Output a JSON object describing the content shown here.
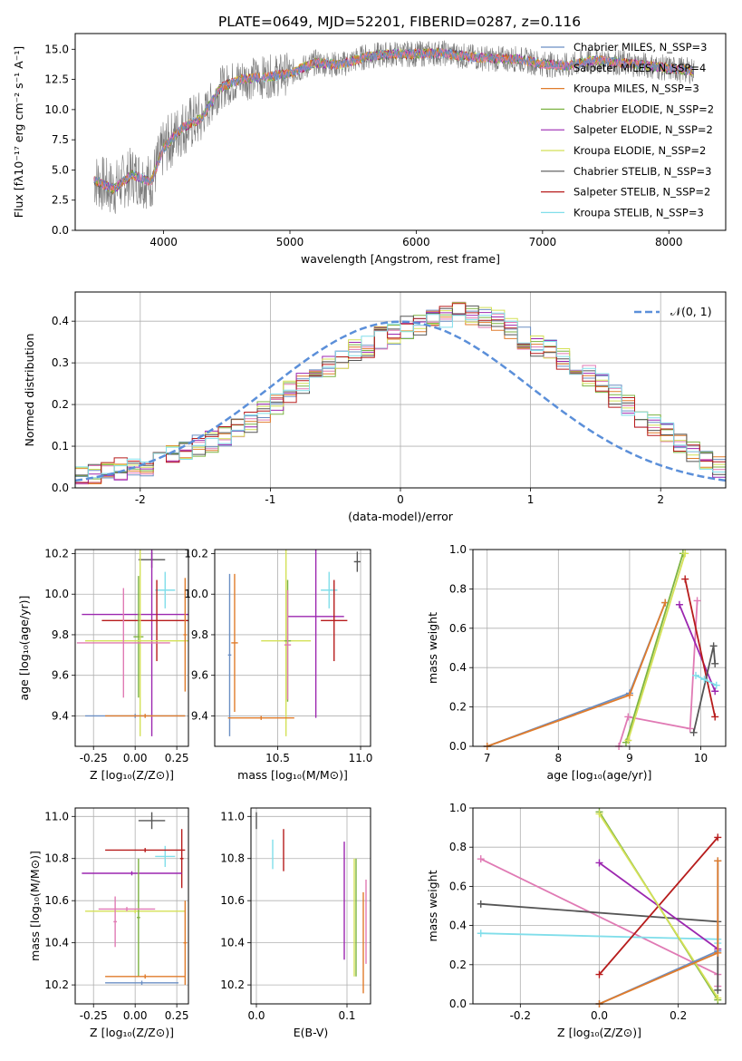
{
  "figure_title": "PLATE=0649, MJD=52201, FIBERID=0287, z=0.116",
  "chart_data": [
    {
      "type": "line",
      "id": "spectrum",
      "xlabel": "wavelength [Angstrom, rest frame]",
      "ylabel": "Flux [fλ10⁻¹⁷ erg cm⁻² s⁻¹ A⁻¹]",
      "xlim": [
        3300,
        8450
      ],
      "ylim": [
        0,
        16.3
      ],
      "xticks": [
        4000,
        5000,
        6000,
        7000,
        8000
      ],
      "yticks": [
        0.0,
        2.5,
        5.0,
        7.5,
        10.0,
        12.5,
        15.0
      ],
      "data_x": [
        3450,
        3600,
        3750,
        3900,
        4000,
        4150,
        4300,
        4450,
        4600,
        4800,
        5000,
        5200,
        5400,
        5600,
        5800,
        6000,
        6200,
        6400,
        6600,
        6800,
        7000,
        7200,
        7400,
        7600,
        7800,
        8000,
        8200
      ],
      "data_y": [
        4.2,
        3.4,
        4.6,
        4.0,
        6.8,
        8.5,
        9.3,
        11.8,
        12.5,
        12.7,
        13.0,
        13.9,
        13.7,
        14.4,
        14.6,
        14.6,
        14.7,
        14.4,
        14.2,
        14.2,
        13.8,
        13.6,
        14.1,
        13.9,
        13.7,
        13.4,
        13.2
      ],
      "legend": [
        {
          "label": "Chabrier MILES, N_SSP=3",
          "color": "#6b8fc4"
        },
        {
          "label": "Salpeter MILES, N_SSP=4",
          "color": "#e07ab4"
        },
        {
          "label": "Kroupa MILES, N_SSP=3",
          "color": "#e07c2c"
        },
        {
          "label": "Chabrier ELODIE, N_SSP=2",
          "color": "#7cb342"
        },
        {
          "label": "Salpeter ELODIE, N_SSP=2",
          "color": "#9c27b0"
        },
        {
          "label": "Kroupa ELODIE, N_SSP=2",
          "color": "#d4e157"
        },
        {
          "label": "Chabrier STELIB, N_SSP=3",
          "color": "#555555"
        },
        {
          "label": "Salpeter STELIB, N_SSP=2",
          "color": "#b71c1c"
        },
        {
          "label": "Kroupa STELIB, N_SSP=3",
          "color": "#80deea"
        }
      ]
    },
    {
      "type": "bar",
      "id": "residuals",
      "xlabel": "(data-model)/error",
      "ylabel": "Normed distribution",
      "xlim": [
        -2.5,
        2.5
      ],
      "ylim": [
        0,
        0.47
      ],
      "xticks": [
        -2,
        -1,
        0,
        1,
        2
      ],
      "yticks": [
        0.0,
        0.1,
        0.2,
        0.3,
        0.4
      ],
      "legend": "𝒩(0, 1)",
      "gaussian": {
        "mu": 0,
        "sigma": 1,
        "color": "#5b8fd9"
      },
      "bins_start": -2.5,
      "bin_width": 0.1,
      "hist_values": [
        0.03,
        0.035,
        0.04,
        0.045,
        0.05,
        0.055,
        0.07,
        0.08,
        0.09,
        0.1,
        0.11,
        0.12,
        0.14,
        0.16,
        0.18,
        0.2,
        0.23,
        0.25,
        0.27,
        0.29,
        0.31,
        0.33,
        0.34,
        0.36,
        0.37,
        0.385,
        0.39,
        0.4,
        0.41,
        0.42,
        0.415,
        0.41,
        0.4,
        0.38,
        0.36,
        0.34,
        0.33,
        0.31,
        0.29,
        0.27,
        0.25,
        0.22,
        0.2,
        0.17,
        0.15,
        0.13,
        0.11,
        0.09,
        0.07,
        0.05
      ]
    },
    {
      "type": "scatter",
      "id": "age-vs-Z",
      "xlabel": "Z [log₁₀(Z/Z⊙)]",
      "ylabel": "age  [log₁₀(age/yr)]",
      "xlim": [
        -0.36,
        0.32
      ],
      "ylim": [
        9.25,
        10.22
      ],
      "xticks": [
        -0.25,
        0.0,
        0.25
      ],
      "yticks": [
        9.4,
        9.6,
        9.8,
        10.0,
        10.2
      ],
      "errorbars": [
        {
          "x": 0.1,
          "y": 10.17,
          "xerr": 0.08,
          "yerr": 0.04,
          "color": "#555555"
        },
        {
          "x": 0.18,
          "y": 10.02,
          "xerr": 0.06,
          "yerr": 0.09,
          "color": "#80deea"
        },
        {
          "x": 0.1,
          "y": 9.9,
          "xerr": 0.42,
          "yerr": 0.6,
          "color": "#9c27b0"
        },
        {
          "x": 0.13,
          "y": 9.87,
          "xerr": 0.33,
          "yerr": 0.2,
          "color": "#b71c1c"
        },
        {
          "x": 0.02,
          "y": 9.79,
          "xerr": 0.03,
          "yerr": 0.3,
          "color": "#7cb342"
        },
        {
          "x": 0.03,
          "y": 9.77,
          "xerr": 0.33,
          "yerr": 0.47,
          "color": "#d4e157"
        },
        {
          "x": -0.07,
          "y": 9.76,
          "xerr": 0.28,
          "yerr": 0.27,
          "color": "#e07ab4"
        },
        {
          "x": 0.3,
          "y": 9.8,
          "xerr": 0.01,
          "yerr": 0.28,
          "color": "#e07c2c"
        },
        {
          "x": 0.0,
          "y": 9.4,
          "xerr": 0.3,
          "yerr": 0.01,
          "color": "#6b8fc4"
        },
        {
          "x": 0.06,
          "y": 9.4,
          "xerr": 0.24,
          "yerr": 0.01,
          "color": "#e07c2c"
        }
      ]
    },
    {
      "type": "scatter",
      "id": "age-vs-mass",
      "xlabel": "mass [log₁₀(M/M⊙)]",
      "ylabel": "",
      "xlim": [
        10.12,
        11.06
      ],
      "ylim": [
        9.25,
        10.22
      ],
      "xticks": [
        10.5,
        11.0
      ],
      "yticks": [
        9.4,
        9.6,
        9.8,
        10.0,
        10.2
      ],
      "errorbars": [
        {
          "x": 10.98,
          "y": 10.16,
          "xerr": 0.02,
          "yerr": 0.05,
          "color": "#555555"
        },
        {
          "x": 10.81,
          "y": 10.02,
          "xerr": 0.05,
          "yerr": 0.09,
          "color": "#80deea"
        },
        {
          "x": 10.73,
          "y": 9.89,
          "xerr": 0.17,
          "yerr": 0.5,
          "color": "#9c27b0"
        },
        {
          "x": 10.84,
          "y": 9.87,
          "xerr": 0.08,
          "yerr": 0.2,
          "color": "#b71c1c"
        },
        {
          "x": 10.55,
          "y": 9.77,
          "xerr": 0.15,
          "yerr": 0.47,
          "color": "#d4e157"
        },
        {
          "x": 10.56,
          "y": 9.77,
          "xerr": 0.02,
          "yerr": 0.3,
          "color": "#7cb342"
        },
        {
          "x": 10.56,
          "y": 9.75,
          "xerr": 0.02,
          "yerr": 0.27,
          "color": "#e07ab4"
        },
        {
          "x": 10.24,
          "y": 9.76,
          "xerr": 0.02,
          "yerr": 0.34,
          "color": "#e07c2c"
        },
        {
          "x": 10.21,
          "y": 9.7,
          "xerr": 0.01,
          "yerr": 0.4,
          "color": "#6b8fc4"
        },
        {
          "x": 10.4,
          "y": 9.39,
          "xerr": 0.2,
          "yerr": 0.01,
          "color": "#e07c2c"
        }
      ]
    },
    {
      "type": "line",
      "id": "weight-vs-age",
      "xlabel": "age  [log₁₀(age/yr)]",
      "ylabel": "mass weight",
      "xlim": [
        6.8,
        10.35
      ],
      "ylim": [
        0.0,
        1.0
      ],
      "xticks": [
        7,
        8,
        9,
        10
      ],
      "yticks": [
        0.0,
        0.2,
        0.4,
        0.6,
        0.8,
        1.0
      ],
      "series": [
        {
          "color": "#6b8fc4",
          "x": [
            7.0,
            9.0,
            9.5
          ],
          "y": [
            0.0,
            0.27,
            0.73
          ]
        },
        {
          "color": "#e07c2c",
          "x": [
            7.0,
            9.0,
            9.5
          ],
          "y": [
            0.0,
            0.26,
            0.73
          ]
        },
        {
          "color": "#e07ab4",
          "x": [
            8.85,
            8.98,
            9.85,
            9.95
          ],
          "y": [
            0.0,
            0.15,
            0.09,
            0.74
          ]
        },
        {
          "color": "#7cb342",
          "x": [
            8.95,
            9.75
          ],
          "y": [
            0.02,
            0.98
          ]
        },
        {
          "color": "#d4e157",
          "x": [
            8.98,
            9.78
          ],
          "y": [
            0.03,
            0.98
          ]
        },
        {
          "color": "#9c27b0",
          "x": [
            9.7,
            10.2
          ],
          "y": [
            0.72,
            0.28
          ]
        },
        {
          "color": "#b71c1c",
          "x": [
            9.78,
            10.2
          ],
          "y": [
            0.85,
            0.15
          ]
        },
        {
          "color": "#555555",
          "x": [
            9.9,
            10.18,
            10.2
          ],
          "y": [
            0.07,
            0.51,
            0.42
          ]
        },
        {
          "color": "#80deea",
          "x": [
            9.93,
            10.05,
            10.22
          ],
          "y": [
            0.36,
            0.34,
            0.31
          ]
        }
      ]
    },
    {
      "type": "scatter",
      "id": "mass-vs-Z",
      "xlabel": "Z [log₁₀(Z/Z⊙)]",
      "ylabel": "mass [log₁₀(M/M⊙)]",
      "xlim": [
        -0.36,
        0.32
      ],
      "ylim": [
        10.11,
        11.04
      ],
      "xticks": [
        -0.25,
        0.0,
        0.25
      ],
      "yticks": [
        10.2,
        10.4,
        10.6,
        10.8,
        11.0
      ],
      "errorbars": [
        {
          "x": 0.1,
          "y": 10.98,
          "xerr": 0.08,
          "yerr": 0.04,
          "color": "#555555"
        },
        {
          "x": 0.18,
          "y": 10.81,
          "xerr": 0.06,
          "yerr": 0.05,
          "color": "#80deea"
        },
        {
          "x": 0.06,
          "y": 10.84,
          "xerr": 0.24,
          "yerr": 0.01,
          "color": "#b71c1c"
        },
        {
          "x": 0.28,
          "y": 10.8,
          "xerr": 0.01,
          "yerr": 0.14,
          "color": "#b71c1c"
        },
        {
          "x": -0.02,
          "y": 10.73,
          "xerr": 0.3,
          "yerr": 0.01,
          "color": "#9c27b0"
        },
        {
          "x": 0.0,
          "y": 10.55,
          "xerr": 0.3,
          "yerr": 0.01,
          "color": "#d4e157"
        },
        {
          "x": 0.02,
          "y": 10.52,
          "xerr": 0.01,
          "yerr": 0.28,
          "color": "#7cb342"
        },
        {
          "x": -0.05,
          "y": 10.56,
          "xerr": 0.17,
          "yerr": 0.01,
          "color": "#e07ab4"
        },
        {
          "x": -0.12,
          "y": 10.5,
          "xerr": 0.01,
          "yerr": 0.12,
          "color": "#e07ab4"
        },
        {
          "x": 0.3,
          "y": 10.4,
          "xerr": 0.01,
          "yerr": 0.2,
          "color": "#e07c2c"
        },
        {
          "x": 0.06,
          "y": 10.24,
          "xerr": 0.24,
          "yerr": 0.01,
          "color": "#e07c2c"
        },
        {
          "x": 0.04,
          "y": 10.21,
          "xerr": 0.22,
          "yerr": 0.01,
          "color": "#6b8fc4"
        }
      ]
    },
    {
      "type": "scatter",
      "id": "mass-vs-ebv",
      "xlabel": "E(B-V)",
      "ylabel": "",
      "xlim": [
        -0.006,
        0.126
      ],
      "ylim": [
        10.11,
        11.04
      ],
      "xticks": [
        0.0,
        0.1
      ],
      "yticks": [
        10.2,
        10.4,
        10.6,
        10.8,
        11.0
      ],
      "errorbars": [
        {
          "x": 0.0,
          "y": 10.98,
          "xerr": 0,
          "yerr": 0.04,
          "color": "#555555"
        },
        {
          "x": 0.018,
          "y": 10.82,
          "xerr": 0,
          "yerr": 0.07,
          "color": "#80deea"
        },
        {
          "x": 0.03,
          "y": 10.84,
          "xerr": 0,
          "yerr": 0.1,
          "color": "#b71c1c"
        },
        {
          "x": 0.097,
          "y": 10.6,
          "xerr": 0,
          "yerr": 0.28,
          "color": "#9c27b0"
        },
        {
          "x": 0.108,
          "y": 10.52,
          "xerr": 0,
          "yerr": 0.28,
          "color": "#d4e157"
        },
        {
          "x": 0.11,
          "y": 10.52,
          "xerr": 0,
          "yerr": 0.28,
          "color": "#7cb342"
        },
        {
          "x": 0.118,
          "y": 10.4,
          "xerr": 0,
          "yerr": 0.24,
          "color": "#e07c2c"
        },
        {
          "x": 0.121,
          "y": 10.5,
          "xerr": 0,
          "yerr": 0.2,
          "color": "#e07ab4"
        }
      ]
    },
    {
      "type": "line",
      "id": "weight-vs-Z",
      "xlabel": "Z [log₁₀(Z/Z⊙)]",
      "ylabel": "mass weight",
      "xlim": [
        -0.32,
        0.32
      ],
      "ylim": [
        0.0,
        1.0
      ],
      "xticks": [
        -0.2,
        0.0,
        0.2
      ],
      "yticks": [
        0.0,
        0.2,
        0.4,
        0.6,
        0.8,
        1.0
      ],
      "series": [
        {
          "color": "#e07ab4",
          "x": [
            -0.3,
            0.3,
            0.3
          ],
          "y": [
            0.74,
            0.15,
            0.09
          ]
        },
        {
          "color": "#555555",
          "x": [
            -0.3,
            0.3,
            0.3
          ],
          "y": [
            0.51,
            0.42,
            0.07
          ]
        },
        {
          "color": "#80deea",
          "x": [
            -0.3,
            0.3,
            0.3
          ],
          "y": [
            0.36,
            0.33,
            0.31
          ]
        },
        {
          "color": "#9c27b0",
          "x": [
            0.0,
            0.3
          ],
          "y": [
            0.72,
            0.28
          ]
        },
        {
          "color": "#b71c1c",
          "x": [
            0.0,
            0.3
          ],
          "y": [
            0.15,
            0.85
          ]
        },
        {
          "color": "#7cb342",
          "x": [
            0.0,
            0.3
          ],
          "y": [
            0.98,
            0.02
          ]
        },
        {
          "color": "#d4e157",
          "x": [
            0.0,
            0.3
          ],
          "y": [
            0.97,
            0.03
          ]
        },
        {
          "color": "#6b8fc4",
          "x": [
            0.0,
            0.3,
            0.3
          ],
          "y": [
            0.0,
            0.27,
            0.73
          ]
        },
        {
          "color": "#e07c2c",
          "x": [
            0.0,
            0.3,
            0.3
          ],
          "y": [
            0.0,
            0.26,
            0.73
          ]
        }
      ]
    }
  ]
}
